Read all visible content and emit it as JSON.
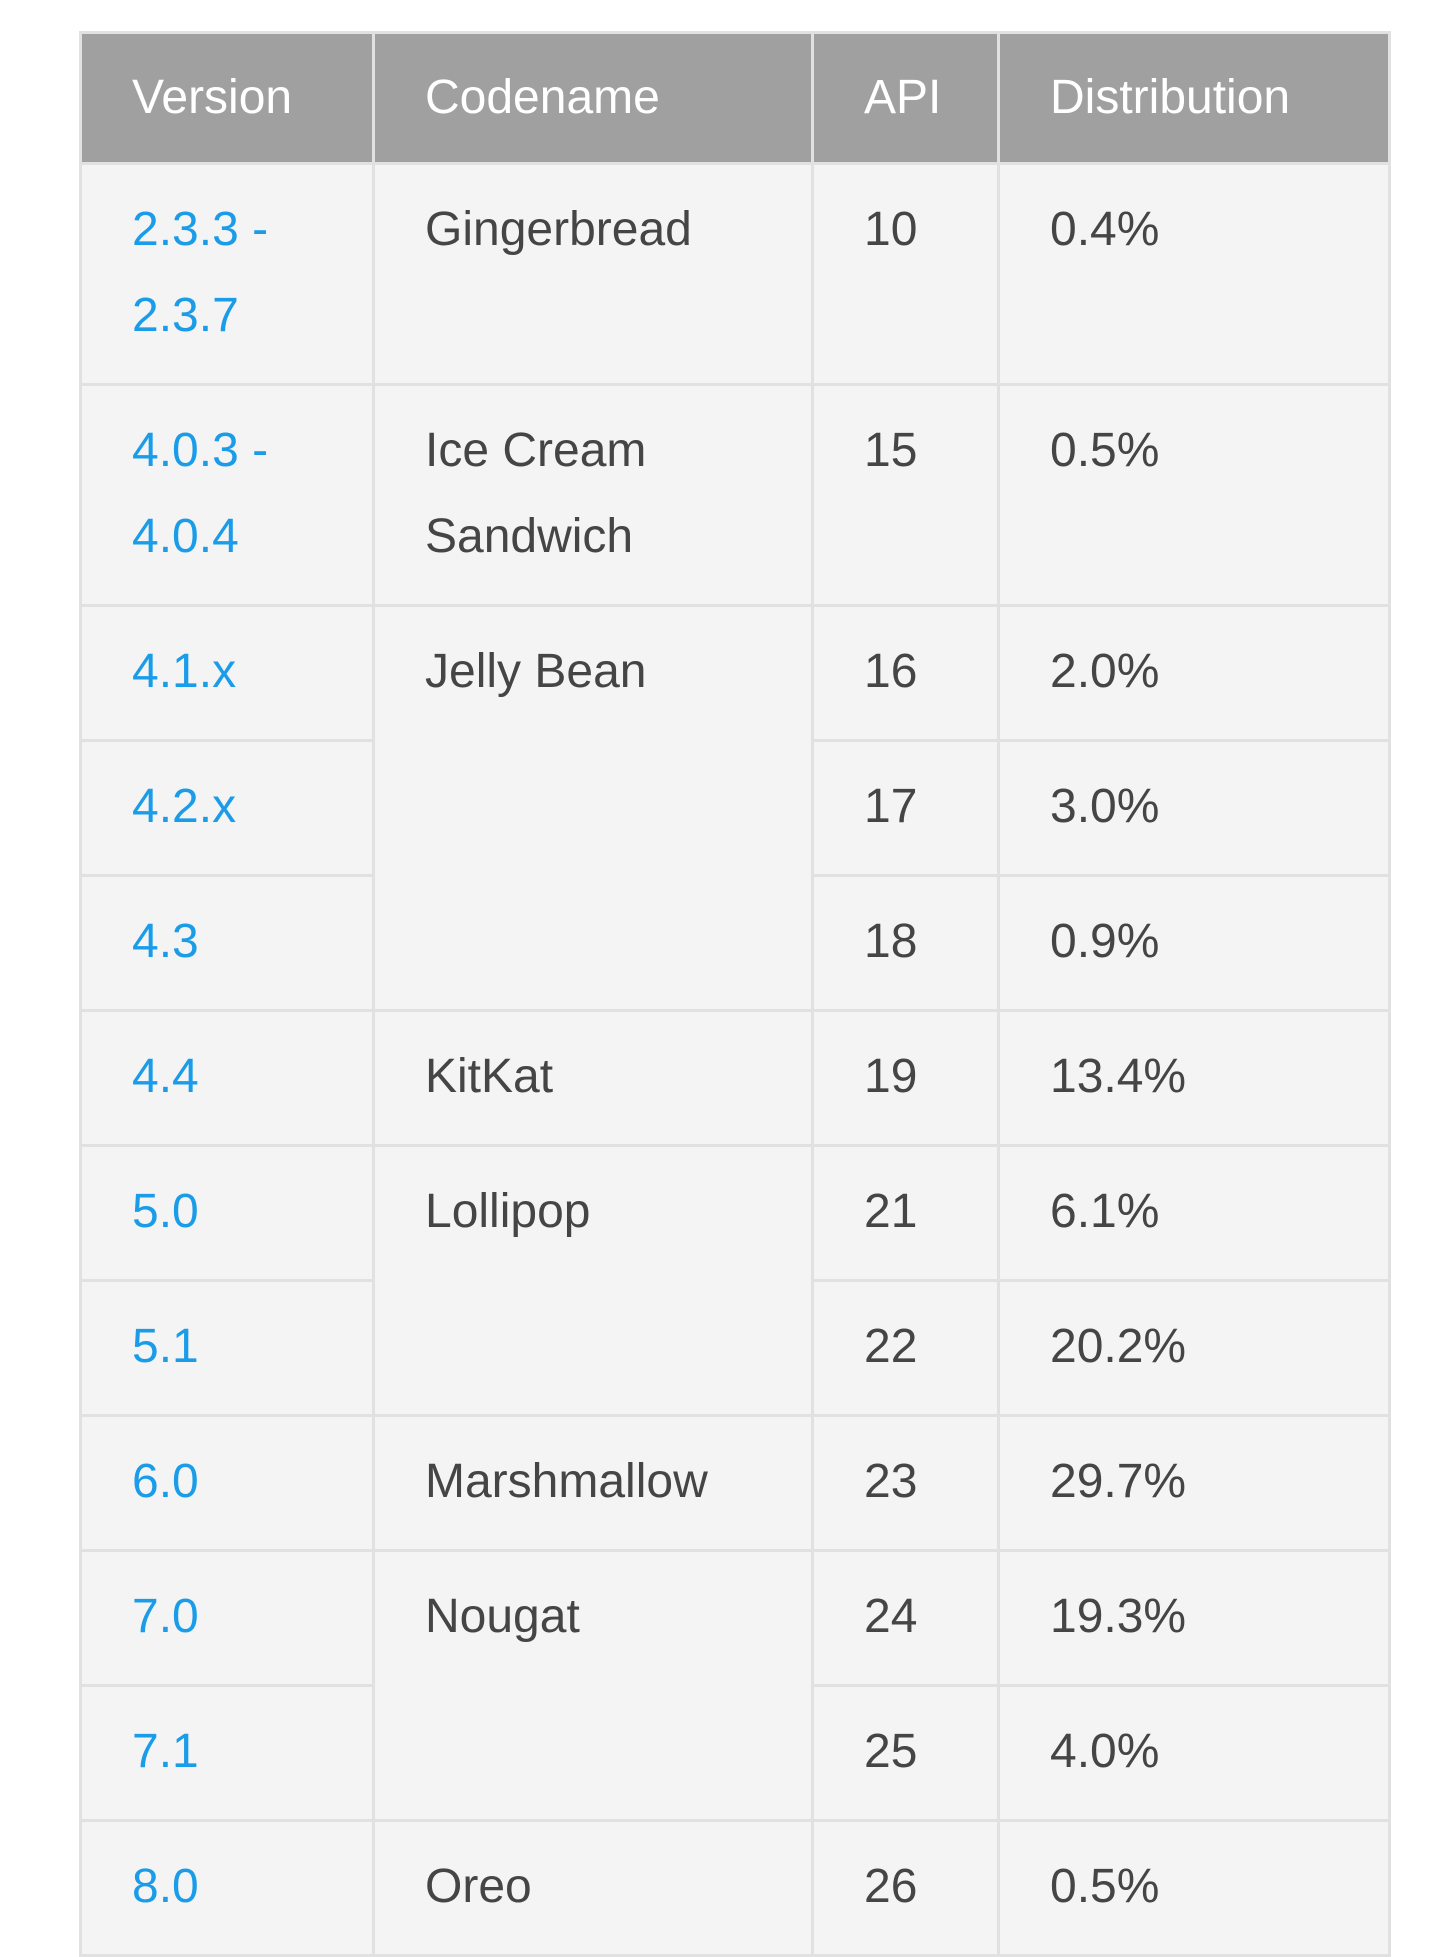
{
  "colors": {
    "header_background": "#a0a0a0",
    "header_text": "#ffffff",
    "cell_background": "#f4f4f4",
    "cell_border": "#e1e1e1",
    "body_text": "#454545",
    "version_link_blue": "#1a9ce9",
    "page_background": "#ffffff"
  },
  "table": {
    "columns": [
      "Version",
      "Codename",
      "API",
      "Distribution"
    ],
    "groups": [
      {
        "codename": "Gingerbread",
        "rows": [
          {
            "version": "2.3.3 - 2.3.7",
            "api": "10",
            "distribution": "0.4%"
          }
        ]
      },
      {
        "codename": "Ice Cream Sandwich",
        "rows": [
          {
            "version": "4.0.3 - 4.0.4",
            "api": "15",
            "distribution": "0.5%"
          }
        ]
      },
      {
        "codename": "Jelly Bean",
        "rows": [
          {
            "version": "4.1.x",
            "api": "16",
            "distribution": "2.0%"
          },
          {
            "version": "4.2.x",
            "api": "17",
            "distribution": "3.0%"
          },
          {
            "version": "4.3",
            "api": "18",
            "distribution": "0.9%"
          }
        ]
      },
      {
        "codename": "KitKat",
        "rows": [
          {
            "version": "4.4",
            "api": "19",
            "distribution": "13.4%"
          }
        ]
      },
      {
        "codename": "Lollipop",
        "rows": [
          {
            "version": "5.0",
            "api": "21",
            "distribution": "6.1%"
          },
          {
            "version": "5.1",
            "api": "22",
            "distribution": "20.2%"
          }
        ]
      },
      {
        "codename": "Marshmallow",
        "rows": [
          {
            "version": "6.0",
            "api": "23",
            "distribution": "29.7%"
          }
        ]
      },
      {
        "codename": "Nougat",
        "rows": [
          {
            "version": "7.0",
            "api": "24",
            "distribution": "19.3%"
          },
          {
            "version": "7.1",
            "api": "25",
            "distribution": "4.0%"
          }
        ]
      },
      {
        "codename": "Oreo",
        "rows": [
          {
            "version": "8.0",
            "api": "26",
            "distribution": "0.5%"
          }
        ]
      }
    ]
  }
}
